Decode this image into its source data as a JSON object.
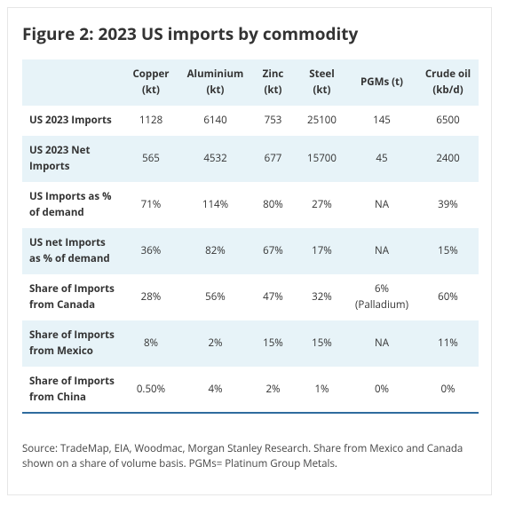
{
  "header": {
    "title": "Figure 2: 2023 US imports by commodity"
  },
  "table": {
    "columns": [
      [
        "Copper",
        "(kt)"
      ],
      [
        "Aluminium",
        "(kt)"
      ],
      [
        "Zinc",
        "(kt)"
      ],
      [
        "Steel",
        "(kt)"
      ],
      [
        "PGMs (t)"
      ],
      [
        "Crude oil",
        "(kb/d)"
      ]
    ],
    "rows": [
      [
        "US 2023 Imports",
        "1128",
        "6140",
        "753",
        "25100",
        "145",
        "6500"
      ],
      [
        "US 2023 Net Imports",
        "565",
        "4532",
        "677",
        "15700",
        "45",
        "2400"
      ],
      [
        "US Imports as % of demand",
        "71%",
        "114%",
        "80%",
        "27%",
        "NA",
        "39%"
      ],
      [
        "US net Imports as % of demand",
        "36%",
        "82%",
        "67%",
        "17%",
        "NA",
        "15%"
      ],
      [
        "Share of Imports from Canada",
        "28%",
        "56%",
        "47%",
        "32%",
        "6% (Palladium)",
        "60%"
      ],
      [
        "Share of Imports from Mexico",
        "8%",
        "2%",
        "15%",
        "15%",
        "NA",
        "11%"
      ],
      [
        "Share of Imports from China",
        "0.50%",
        "4%",
        "2%",
        "1%",
        "0%",
        "0%"
      ]
    ]
  },
  "footer": {
    "source": "Source: TradeMap, EIA, Woodmac, Morgan Stanley Research. Share from Mexico and Canada shown on a share of volume basis. PGMs= Platinum Group Metals."
  }
}
